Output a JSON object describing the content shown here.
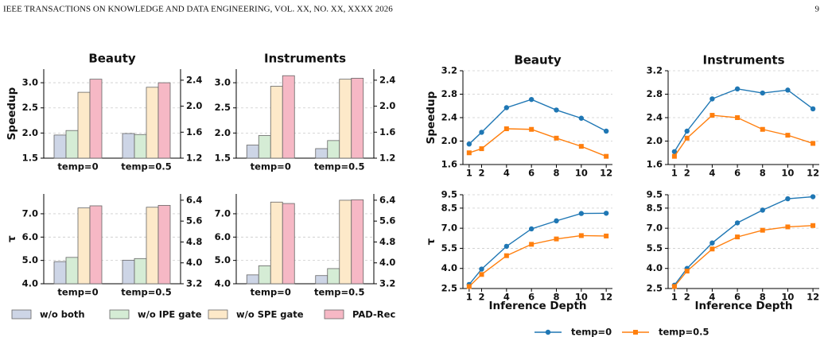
{
  "header": {
    "journal": "IEEE TRANSACTIONS ON KNOWLEDGE AND DATA ENGINEERING, VOL. XX, NO. XX, XXXX 2026",
    "page": "9"
  },
  "chart_data": [
    {
      "type": "bar",
      "title": "Beauty",
      "ylabel": "Speedup",
      "categories": [
        "temp=0",
        "temp=0.5"
      ],
      "series": [
        {
          "name": "w/o both",
          "color": "#cdd5e6",
          "values": [
            1.96,
            1.99
          ]
        },
        {
          "name": "w/o IPE gate",
          "color": "#d5ecd5",
          "values": [
            2.05,
            1.97
          ]
        },
        {
          "name": "w/o SPE gate",
          "color": "#fde9c9",
          "values": [
            2.81,
            2.91
          ]
        },
        {
          "name": "PAD-Rec",
          "color": "#f6b8c5",
          "values": [
            3.07,
            3.0
          ]
        }
      ],
      "ylim": [
        1.5,
        3.27
      ],
      "yticks": [
        1.5,
        {
          "value": 2.0,
          "label": "2.0"
        },
        2.5,
        {
          "value": 3.0,
          "label": "3.0"
        }
      ],
      "y2lim": [
        1.2,
        2.57
      ],
      "y2ticks": [
        1.2,
        1.6,
        {
          "value": 2.0,
          "label": "2.0"
        },
        2.4
      ],
      "grid": true
    },
    {
      "type": "bar",
      "title": "Instruments",
      "categories": [
        "temp=0",
        "temp=0.5"
      ],
      "series": [
        {
          "color": "#cdd5e6",
          "values": [
            1.76,
            1.69
          ]
        },
        {
          "color": "#d5ecd5",
          "values": [
            1.95,
            1.85
          ]
        },
        {
          "color": "#fde9c9",
          "values": [
            2.93,
            3.07
          ]
        },
        {
          "color": "#f6b8c5",
          "values": [
            3.14,
            3.09
          ]
        }
      ],
      "ylim": [
        1.5,
        3.27
      ],
      "yticks": [
        1.5,
        {
          "value": 2.0,
          "label": "2.0"
        },
        2.5,
        {
          "value": 3.0,
          "label": "3.0"
        }
      ],
      "y2lim": [
        1.2,
        2.57
      ],
      "y2ticks": [
        1.2,
        1.6,
        {
          "value": 2.0,
          "label": "2.0"
        },
        2.4
      ],
      "grid": true
    },
    {
      "type": "bar",
      "ylabel": "τ",
      "categories": [
        "temp=0",
        "temp=0.5"
      ],
      "series": [
        {
          "color": "#cdd5e6",
          "values": [
            4.95,
            5.01
          ]
        },
        {
          "color": "#d5ecd5",
          "values": [
            5.13,
            5.08
          ]
        },
        {
          "color": "#fde9c9",
          "values": [
            7.25,
            7.28
          ]
        },
        {
          "color": "#f6b8c5",
          "values": [
            7.34,
            7.36
          ]
        }
      ],
      "ylim": [
        4.0,
        7.85
      ],
      "yticks": [
        {
          "value": 4.0,
          "label": "4.0"
        },
        {
          "value": 5.0,
          "label": "5.0"
        },
        {
          "value": 6.0,
          "label": "6.0"
        },
        {
          "value": 7.0,
          "label": "7.0"
        }
      ],
      "y2lim": [
        3.2,
        6.64
      ],
      "y2ticks": [
        3.2,
        {
          "value": 4.0,
          "label": "4.0"
        },
        4.8,
        5.6,
        6.4
      ],
      "grid": true
    },
    {
      "type": "bar",
      "categories": [
        "temp=0",
        "temp=0.5"
      ],
      "series": [
        {
          "color": "#cdd5e6",
          "values": [
            4.38,
            4.35
          ]
        },
        {
          "color": "#d5ecd5",
          "values": [
            4.77,
            4.65
          ]
        },
        {
          "color": "#fde9c9",
          "values": [
            7.5,
            7.58
          ]
        },
        {
          "color": "#f6b8c5",
          "values": [
            7.44,
            7.6
          ]
        }
      ],
      "ylim": [
        4.0,
        7.85
      ],
      "yticks": [
        {
          "value": 4.0,
          "label": "4.0"
        },
        {
          "value": 5.0,
          "label": "5.0"
        },
        {
          "value": 6.0,
          "label": "6.0"
        },
        {
          "value": 7.0,
          "label": "7.0"
        }
      ],
      "y2lim": [
        3.2,
        6.64
      ],
      "y2ticks": [
        3.2,
        {
          "value": 4.0,
          "label": "4.0"
        },
        4.8,
        5.6,
        6.4
      ],
      "grid": true
    },
    {
      "type": "line",
      "title": "Beauty",
      "ylabel": "Speedup",
      "x": [
        1,
        2,
        4,
        6,
        8,
        10,
        12
      ],
      "series": [
        {
          "name": "temp=0",
          "color": "#1f77b4",
          "marker": "circle",
          "values": [
            1.95,
            2.15,
            2.57,
            2.71,
            2.53,
            2.39,
            2.17
          ]
        },
        {
          "name": "temp=0.5",
          "color": "#ff7f0e",
          "marker": "square",
          "values": [
            1.8,
            1.87,
            2.21,
            2.2,
            2.05,
            1.91,
            1.74
          ]
        }
      ],
      "xlim": [
        0.5,
        12.5
      ],
      "xticks": [
        1,
        2,
        4,
        6,
        8,
        10,
        12
      ],
      "ylim": [
        1.6,
        3.2
      ],
      "yticks": [
        1.6,
        {
          "value": 2.0,
          "label": "2.0"
        },
        2.4,
        2.8,
        3.2
      ],
      "grid": true
    },
    {
      "type": "line",
      "title": "Instruments",
      "x": [
        1,
        2,
        4,
        6,
        8,
        10,
        12
      ],
      "series": [
        {
          "color": "#1f77b4",
          "marker": "circle",
          "values": [
            1.82,
            2.17,
            2.72,
            2.89,
            2.82,
            2.87,
            2.55
          ]
        },
        {
          "color": "#ff7f0e",
          "marker": "square",
          "values": [
            1.74,
            2.05,
            2.44,
            2.4,
            2.2,
            2.1,
            1.96
          ]
        }
      ],
      "xlim": [
        0.5,
        12.5
      ],
      "xticks": [
        1,
        2,
        4,
        6,
        8,
        10,
        12
      ],
      "ylim": [
        1.6,
        3.2
      ],
      "yticks": [
        1.6,
        {
          "value": 2.0,
          "label": "2.0"
        },
        2.4,
        2.8,
        3.2
      ],
      "grid": true
    },
    {
      "type": "line",
      "ylabel": "τ",
      "xlabel": "Inference Depth",
      "x": [
        1,
        2,
        4,
        6,
        8,
        10,
        12
      ],
      "series": [
        {
          "color": "#1f77b4",
          "marker": "circle",
          "values": [
            2.8,
            3.95,
            5.65,
            6.95,
            7.55,
            8.1,
            8.12
          ]
        },
        {
          "color": "#ff7f0e",
          "marker": "square",
          "values": [
            2.65,
            3.55,
            4.95,
            5.8,
            6.2,
            6.45,
            6.42
          ]
        }
      ],
      "xlim": [
        0.5,
        12.5
      ],
      "xticks": [
        1,
        2,
        4,
        6,
        8,
        10,
        12
      ],
      "ylim": [
        2.5,
        9.5
      ],
      "yticks": [
        2.5,
        {
          "value": 4.0,
          "label": "4.0"
        },
        5.5,
        {
          "value": 7.0,
          "label": "7.0"
        },
        8.5,
        9.5
      ],
      "grid": true
    },
    {
      "type": "line",
      "xlabel": "Inference Depth",
      "x": [
        1,
        2,
        4,
        6,
        8,
        10,
        12
      ],
      "series": [
        {
          "color": "#1f77b4",
          "marker": "circle",
          "values": [
            2.75,
            4.0,
            5.9,
            7.4,
            8.35,
            9.2,
            9.35
          ]
        },
        {
          "color": "#ff7f0e",
          "marker": "square",
          "values": [
            2.65,
            3.8,
            5.45,
            6.35,
            6.85,
            7.1,
            7.2
          ]
        }
      ],
      "xlim": [
        0.5,
        12.5
      ],
      "xticks": [
        1,
        2,
        4,
        6,
        8,
        10,
        12
      ],
      "ylim": [
        2.5,
        9.5
      ],
      "yticks": [
        2.5,
        {
          "value": 4.0,
          "label": "4.0"
        },
        5.5,
        {
          "value": 7.0,
          "label": "7.0"
        },
        8.5,
        9.5
      ],
      "grid": true
    }
  ]
}
